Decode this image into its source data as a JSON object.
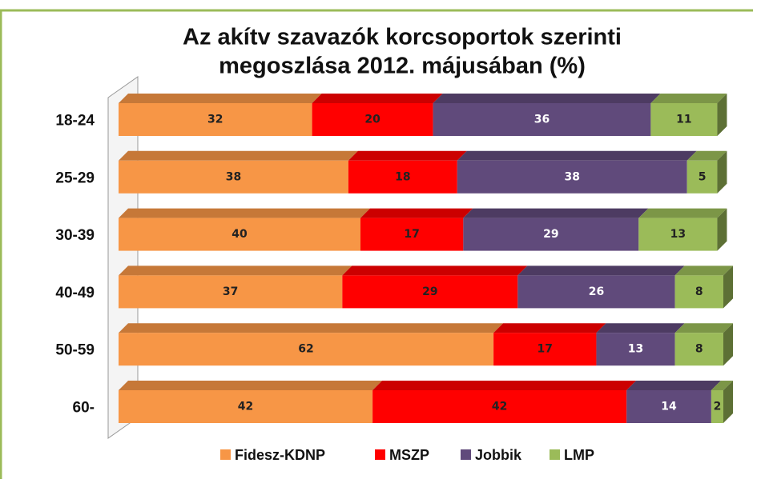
{
  "chart_data": {
    "type": "stacked-bar-horizontal",
    "title": "Az akítv szavazók korcsoportok szerinti megoszlása 2012. májusában (%)",
    "title_lines": [
      "Az akítv szavazók korcsoportok szerinti",
      "megoszlása 2012. májusában (%)"
    ],
    "categories": [
      "18-24",
      "25-29",
      "30-39",
      "40-49",
      "50-59",
      "60-"
    ],
    "series": [
      {
        "name": "Fidesz-KDNP",
        "color": "#f79646",
        "values": [
          32,
          38,
          40,
          37,
          62,
          42
        ]
      },
      {
        "name": "MSZP",
        "color": "#ff0000",
        "values": [
          20,
          18,
          17,
          29,
          17,
          42
        ]
      },
      {
        "name": "Jobbik",
        "color": "#604a7b",
        "values": [
          36,
          38,
          29,
          26,
          13,
          14
        ]
      },
      {
        "name": "LMP",
        "color": "#9bbb59",
        "values": [
          11,
          5,
          13,
          8,
          8,
          2
        ]
      }
    ],
    "legend": "bottom"
  }
}
